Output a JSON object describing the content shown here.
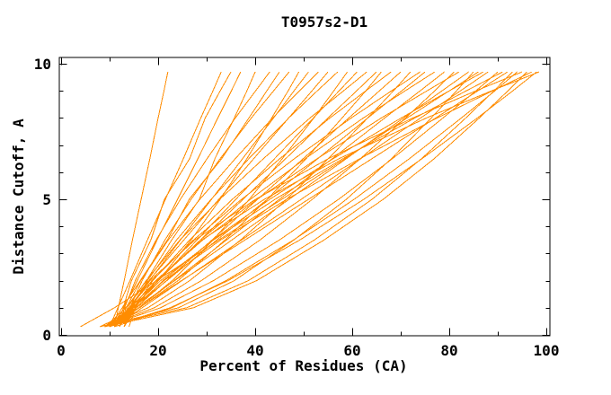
{
  "chart_data": {
    "type": "line",
    "title": "T0957s2-D1",
    "xlabel": "Percent of Residues (CA)",
    "ylabel": "Distance Cutoff, A",
    "xlim": [
      0,
      100
    ],
    "ylim": [
      0,
      10
    ],
    "xticks_major": [
      0,
      20,
      40,
      60,
      80,
      100
    ],
    "xticks_minor": [
      10,
      30,
      50,
      70,
      90
    ],
    "yticks_major": [
      0,
      5,
      10
    ],
    "yticks_minor": [
      1,
      2,
      3,
      4,
      6,
      7,
      8,
      9
    ],
    "grid": false,
    "legend": "none",
    "line_color": "#ff8c00",
    "axis_color": "#000000",
    "background": "#ffffff",
    "y_stations": [
      0.3,
      1,
      2,
      3.5,
      5,
      6.5,
      8,
      9,
      9.7
    ],
    "series_x": [
      [
        11,
        11.8,
        13,
        14.7,
        16.5,
        18.3,
        20,
        21.2,
        22
      ],
      [
        10,
        11.7,
        14.2,
        17.8,
        21.5,
        25.2,
        28.8,
        31.3,
        33
      ],
      [
        12,
        12.8,
        14.5,
        18.5,
        21.3,
        26.5,
        29.7,
        32.8,
        35
      ],
      [
        11,
        12.9,
        15.7,
        19.8,
        24,
        28.2,
        32.3,
        35.1,
        37
      ],
      [
        9,
        13.4,
        17.6,
        22.8,
        28.5,
        31.7,
        35.7,
        38.3,
        40
      ],
      [
        12,
        13.1,
        15.3,
        19.6,
        24.6,
        30.1,
        35.9,
        40.1,
        43
      ],
      [
        10,
        12.6,
        16.3,
        21.9,
        26.4,
        33.1,
        38.7,
        42.4,
        45
      ],
      [
        13,
        14.2,
        16.7,
        21.4,
        26.8,
        32.8,
        39.2,
        43.8,
        47
      ],
      [
        9,
        14.7,
        20.1,
        26.8,
        32.8,
        38.3,
        43.4,
        46.8,
        49
      ],
      [
        11,
        14,
        18.2,
        24.6,
        31,
        37.4,
        43.8,
        48,
        51
      ],
      [
        12,
        13.4,
        16.4,
        22.1,
        28.6,
        35.9,
        43.6,
        49.1,
        53
      ],
      [
        10,
        13.3,
        18.1,
        25.3,
        32.5,
        39.7,
        46.9,
        51.7,
        55
      ],
      [
        13,
        14.5,
        17.8,
        23.8,
        30.9,
        38.7,
        46.9,
        52.8,
        57
      ],
      [
        9,
        16.1,
        22.9,
        31.3,
        38.8,
        45.6,
        52.1,
        56.2,
        59
      ],
      [
        11,
        14.7,
        20.1,
        28,
        36,
        44,
        52,
        57.3,
        61
      ],
      [
        12,
        13.7,
        17.5,
        24.5,
        32.7,
        41.7,
        51.3,
        58.2,
        63
      ],
      [
        10,
        14.1,
        20,
        28.7,
        37.5,
        46.3,
        55,
        60.9,
        65
      ],
      [
        8,
        16.2,
        24.1,
        33.8,
        42.5,
        50.5,
        57.9,
        62.8,
        66
      ],
      [
        13,
        14.9,
        18.9,
        26.5,
        35.3,
        45.1,
        55.4,
        62.8,
        68
      ],
      [
        11,
        15.4,
        21.7,
        31.1,
        40.5,
        49.9,
        59.3,
        65.6,
        70
      ],
      [
        9,
        17.9,
        26.5,
        37,
        46.5,
        55.1,
        63.2,
        68.5,
        72
      ],
      [
        12,
        14.1,
        18.7,
        27.3,
        37.2,
        48.1,
        59.8,
        68.1,
        74
      ],
      [
        10,
        14.8,
        21.8,
        32.1,
        42.5,
        52.9,
        63.2,
        70.2,
        75
      ],
      [
        13,
        15.2,
        19.9,
        28.7,
        39,
        50.3,
        62.3,
        70.9,
        77
      ],
      [
        11,
        16,
        23.3,
        34.1,
        45,
        55.9,
        66.7,
        74,
        79
      ],
      [
        9,
        19.2,
        28.9,
        41,
        51.8,
        61.7,
        71,
        77,
        81
      ],
      [
        12,
        14.4,
        19.6,
        29.2,
        40.4,
        52.8,
        66,
        75.4,
        82
      ],
      [
        10,
        15.5,
        23.4,
        35.2,
        47,
        58.8,
        70.6,
        78.5,
        84
      ],
      [
        8,
        24.2,
        35.7,
        48,
        58.8,
        68.1,
        76.3,
        81.5,
        85
      ],
      [
        13,
        15.5,
        21,
        31.2,
        43,
        56.1,
        70.1,
        80,
        87
      ],
      [
        11,
        16.7,
        24.9,
        37.2,
        49.5,
        61.8,
        74.1,
        82.3,
        88
      ],
      [
        9,
        20.5,
        31.4,
        45,
        57.2,
        68.3,
        78.7,
        85.5,
        90
      ],
      [
        12,
        14.7,
        20.5,
        31.4,
        44.1,
        58.1,
        72.9,
        83.5,
        91
      ],
      [
        10,
        16.1,
        24.8,
        37.9,
        51,
        64.1,
        77.2,
        85.9,
        92
      ],
      [
        8,
        25.9,
        38.6,
        52.2,
        64.1,
        74.3,
        83.4,
        89.2,
        93
      ],
      [
        11,
        22.8,
        34,
        47.9,
        60.4,
        71.8,
        82.5,
        89.4,
        94
      ],
      [
        13,
        14.3,
        18.3,
        27.6,
        40.1,
        55.1,
        72.5,
        85.5,
        95
      ],
      [
        9,
        27.3,
        40.3,
        54.2,
        66.4,
        76.9,
        86.2,
        92.1,
        96
      ],
      [
        12,
        14.9,
        21.2,
        32.9,
        46.5,
        61.6,
        77.5,
        88.9,
        97
      ],
      [
        10,
        22.5,
        34.4,
        49.2,
        62.4,
        74.4,
        85.8,
        93.1,
        98
      ],
      [
        4,
        11,
        19.7,
        32.5,
        45.5,
        58.5,
        71.3,
        80,
        86
      ],
      [
        14,
        15.3,
        19.5,
        29,
        41.9,
        57.3,
        75.3,
        88.7,
        98.5
      ]
    ]
  }
}
